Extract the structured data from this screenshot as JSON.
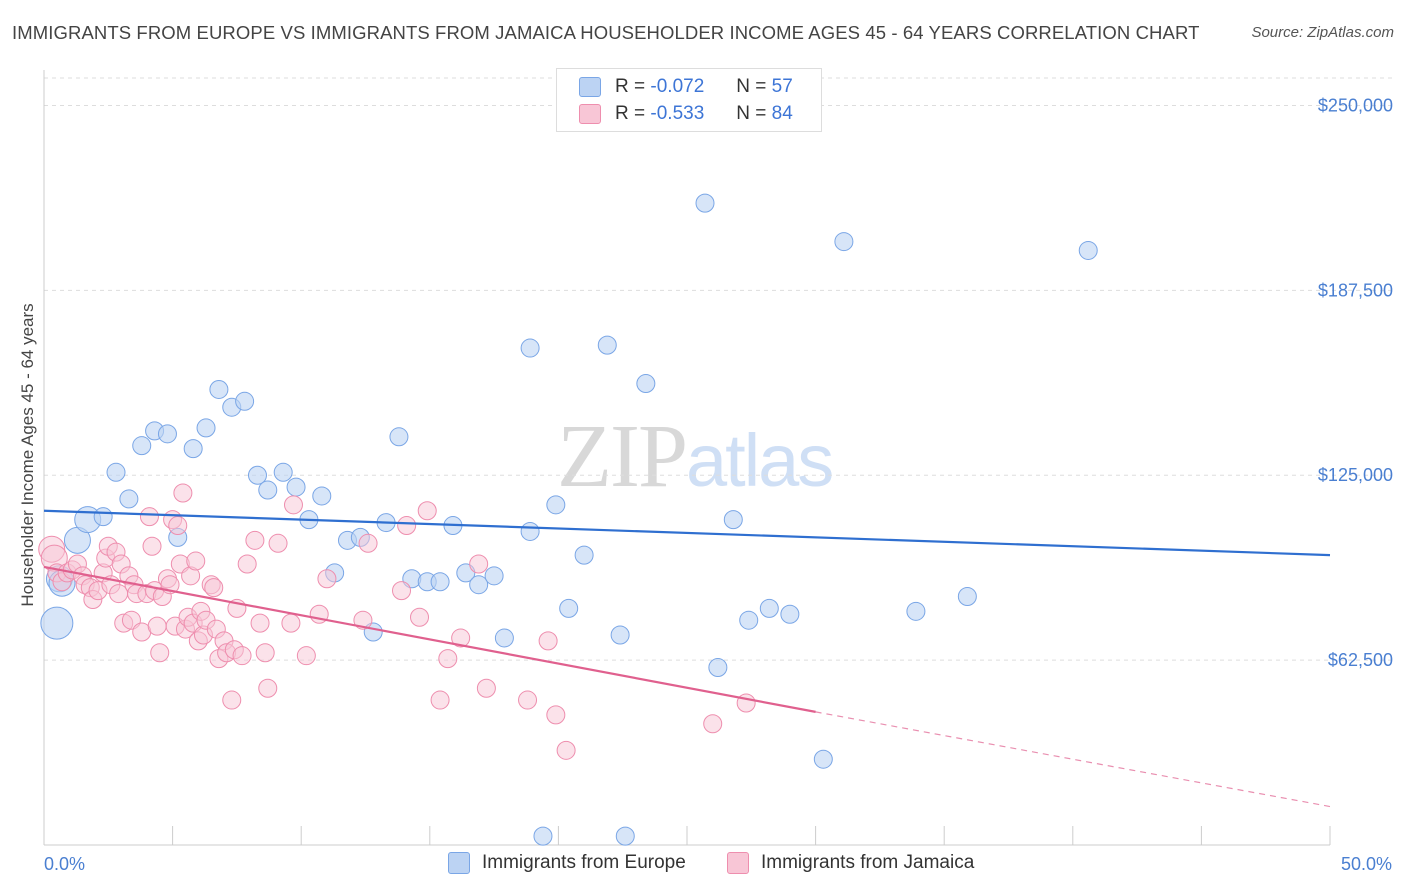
{
  "title": "IMMIGRANTS FROM EUROPE VS IMMIGRANTS FROM JAMAICA HOUSEHOLDER INCOME AGES 45 - 64 YEARS CORRELATION CHART",
  "source": "Source: ZipAtlas.com",
  "watermark": {
    "zip": "ZIP",
    "atlas": "atlas"
  },
  "legend": {
    "europe": {
      "r_label": "R =",
      "r_value": "-0.072",
      "n_label": "N =",
      "n_value": "57"
    },
    "jamaica": {
      "r_label": "R =",
      "r_value": "-0.533",
      "n_label": "N =",
      "n_value": "84"
    }
  },
  "bottom_legend": {
    "europe": "Immigrants from Europe",
    "jamaica": "Immigrants from Jamaica"
  },
  "colors": {
    "europe_fill": "#bcd3f3",
    "europe_stroke": "#7aa6e6",
    "europe_line": "#2f6fd0",
    "jamaica_fill": "#f8c6d6",
    "jamaica_stroke": "#ee8eae",
    "jamaica_line": "#e0608e",
    "grid": "#dddddd",
    "tick_label": "#4a7fd1"
  },
  "chart_data": {
    "type": "scatter",
    "title": "IMMIGRANTS FROM EUROPE VS IMMIGRANTS FROM JAMAICA HOUSEHOLDER INCOME AGES 45 - 64 YEARS CORRELATION CHART",
    "xlabel": "",
    "ylabel": "Householder Income Ages 45 - 64 years",
    "xlim": [
      0,
      50
    ],
    "ylim": [
      0,
      262000
    ],
    "x_tick_labels": [
      "0.0%",
      "50.0%"
    ],
    "y_ticks": [
      62500,
      125000,
      187500,
      250000
    ],
    "y_tick_labels": [
      "$62,500",
      "$125,000",
      "$187,500",
      "$250,000"
    ],
    "grid": "horizontal dashed",
    "legend_position": "top-center",
    "series": [
      {
        "name": "Immigrants from Europe",
        "r": -0.072,
        "n": 57,
        "trend": {
          "x0": 0,
          "y0": 113000,
          "x1": 50,
          "y1": 98000
        },
        "points": [
          [
            0.5,
            75000,
            3
          ],
          [
            0.6,
            90000,
            2
          ],
          [
            0.7,
            88500,
            2
          ],
          [
            1.3,
            103000,
            2
          ],
          [
            1.7,
            110000,
            2
          ],
          [
            2.3,
            111000,
            1
          ],
          [
            2.8,
            126000,
            1
          ],
          [
            3.3,
            117000,
            1
          ],
          [
            3.8,
            135000,
            1
          ],
          [
            4.3,
            140000,
            1
          ],
          [
            4.8,
            139000,
            1
          ],
          [
            5.2,
            104000,
            1
          ],
          [
            5.8,
            134000,
            1
          ],
          [
            6.3,
            141000,
            1
          ],
          [
            6.8,
            154000,
            1
          ],
          [
            7.3,
            148000,
            1
          ],
          [
            7.8,
            150000,
            1
          ],
          [
            8.3,
            125000,
            1
          ],
          [
            8.7,
            120000,
            1
          ],
          [
            9.3,
            126000,
            1
          ],
          [
            9.8,
            121000,
            1
          ],
          [
            10.3,
            110000,
            1
          ],
          [
            10.8,
            118000,
            1
          ],
          [
            11.3,
            92000,
            1
          ],
          [
            11.8,
            103000,
            1
          ],
          [
            12.3,
            104000,
            1
          ],
          [
            12.8,
            72000,
            1
          ],
          [
            13.3,
            109000,
            1
          ],
          [
            13.8,
            138000,
            1
          ],
          [
            14.3,
            90000,
            1
          ],
          [
            14.9,
            89000,
            1
          ],
          [
            15.4,
            89000,
            1
          ],
          [
            15.9,
            108000,
            1
          ],
          [
            16.4,
            92000,
            1
          ],
          [
            16.9,
            88000,
            1
          ],
          [
            17.5,
            91000,
            1
          ],
          [
            17.9,
            70000,
            1
          ],
          [
            18.9,
            106000,
            1
          ],
          [
            18.9,
            168000,
            1
          ],
          [
            19.4,
            3000,
            1
          ],
          [
            19.9,
            115000,
            1
          ],
          [
            20.4,
            80000,
            1
          ],
          [
            21.0,
            98000,
            1
          ],
          [
            21.9,
            169000,
            1
          ],
          [
            22.4,
            71000,
            1
          ],
          [
            22.6,
            3000,
            1
          ],
          [
            23.4,
            156000,
            1
          ],
          [
            26.2,
            60000,
            1
          ],
          [
            25.7,
            217000,
            1
          ],
          [
            26.8,
            110000,
            1
          ],
          [
            27.4,
            76000,
            1
          ],
          [
            28.2,
            80000,
            1
          ],
          [
            29.0,
            78000,
            1
          ],
          [
            30.3,
            29000,
            1
          ],
          [
            31.1,
            204000,
            1
          ],
          [
            33.9,
            79000,
            1
          ],
          [
            35.9,
            84000,
            1
          ],
          [
            40.6,
            201000,
            1
          ]
        ]
      },
      {
        "name": "Immigrants from Jamaica",
        "r": -0.533,
        "n": 84,
        "trend": {
          "x0": 0,
          "y0": 94000,
          "x1": 30,
          "y1": 45000,
          "dash_x1": 50,
          "dash_y1": 13000
        },
        "points": [
          [
            0.3,
            100000,
            2
          ],
          [
            0.4,
            97000,
            2
          ],
          [
            0.5,
            92000,
            1
          ],
          [
            0.7,
            89000,
            1
          ],
          [
            0.9,
            92000,
            1
          ],
          [
            1.1,
            93000,
            1
          ],
          [
            1.3,
            95000,
            1
          ],
          [
            1.5,
            91000,
            1
          ],
          [
            1.6,
            88000,
            1
          ],
          [
            1.8,
            87000,
            1
          ],
          [
            1.9,
            83000,
            1
          ],
          [
            2.1,
            86000,
            1
          ],
          [
            2.3,
            92000,
            1
          ],
          [
            2.4,
            97000,
            1
          ],
          [
            2.5,
            101000,
            1
          ],
          [
            2.6,
            88000,
            1
          ],
          [
            2.8,
            99000,
            1
          ],
          [
            2.9,
            85000,
            1
          ],
          [
            3.0,
            95000,
            1
          ],
          [
            3.1,
            75000,
            1
          ],
          [
            3.3,
            91000,
            1
          ],
          [
            3.4,
            76000,
            1
          ],
          [
            3.5,
            88000,
            1
          ],
          [
            3.6,
            85000,
            1
          ],
          [
            3.8,
            72000,
            1
          ],
          [
            4.0,
            85000,
            1
          ],
          [
            4.1,
            111000,
            1
          ],
          [
            4.2,
            101000,
            1
          ],
          [
            4.3,
            86000,
            1
          ],
          [
            4.4,
            74000,
            1
          ],
          [
            4.5,
            65000,
            1
          ],
          [
            4.6,
            84000,
            1
          ],
          [
            4.8,
            90000,
            1
          ],
          [
            4.9,
            88000,
            1
          ],
          [
            5.0,
            110000,
            1
          ],
          [
            5.1,
            74000,
            1
          ],
          [
            5.2,
            108000,
            1
          ],
          [
            5.3,
            95000,
            1
          ],
          [
            5.4,
            119000,
            1
          ],
          [
            5.5,
            73000,
            1
          ],
          [
            5.6,
            77000,
            1
          ],
          [
            5.7,
            91000,
            1
          ],
          [
            5.8,
            75000,
            1
          ],
          [
            5.9,
            96000,
            1
          ],
          [
            6.0,
            69000,
            1
          ],
          [
            6.1,
            79000,
            1
          ],
          [
            6.2,
            71000,
            1
          ],
          [
            6.3,
            76000,
            1
          ],
          [
            6.5,
            88000,
            1
          ],
          [
            6.6,
            87000,
            1
          ],
          [
            6.7,
            73000,
            1
          ],
          [
            6.8,
            63000,
            1
          ],
          [
            7.0,
            69000,
            1
          ],
          [
            7.1,
            65000,
            1
          ],
          [
            7.3,
            49000,
            1
          ],
          [
            7.4,
            66000,
            1
          ],
          [
            7.5,
            80000,
            1
          ],
          [
            7.7,
            64000,
            1
          ],
          [
            7.9,
            95000,
            1
          ],
          [
            8.2,
            103000,
            1
          ],
          [
            8.4,
            75000,
            1
          ],
          [
            8.6,
            65000,
            1
          ],
          [
            8.7,
            53000,
            1
          ],
          [
            9.1,
            102000,
            1
          ],
          [
            9.6,
            75000,
            1
          ],
          [
            9.7,
            115000,
            1
          ],
          [
            10.2,
            64000,
            1
          ],
          [
            10.7,
            78000,
            1
          ],
          [
            11.0,
            90000,
            1
          ],
          [
            12.4,
            76000,
            1
          ],
          [
            12.6,
            102000,
            1
          ],
          [
            13.9,
            86000,
            1
          ],
          [
            14.1,
            108000,
            1
          ],
          [
            14.6,
            77000,
            1
          ],
          [
            14.9,
            113000,
            1
          ],
          [
            15.4,
            49000,
            1
          ],
          [
            15.7,
            63000,
            1
          ],
          [
            16.2,
            70000,
            1
          ],
          [
            16.9,
            95000,
            1
          ],
          [
            17.2,
            53000,
            1
          ],
          [
            18.8,
            49000,
            1
          ],
          [
            19.6,
            69000,
            1
          ],
          [
            19.9,
            44000,
            1
          ],
          [
            20.3,
            32000,
            1
          ],
          [
            26.0,
            41000,
            1
          ],
          [
            27.3,
            48000,
            1
          ]
        ]
      }
    ]
  }
}
